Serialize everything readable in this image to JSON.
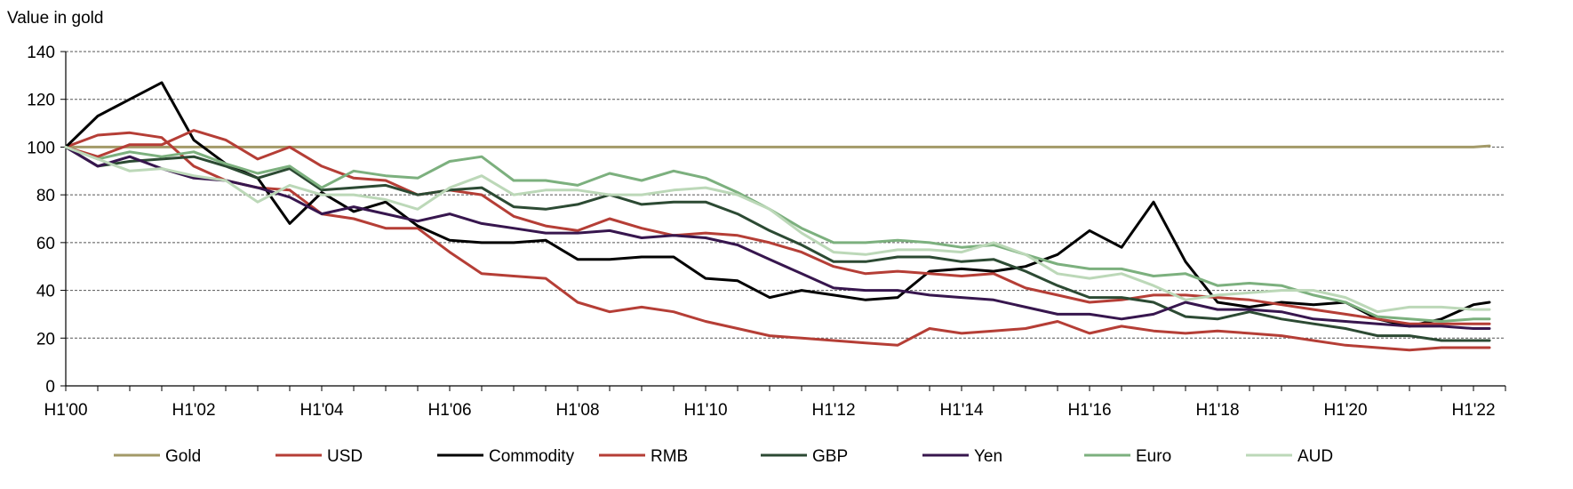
{
  "chart_data": {
    "type": "line",
    "title": "",
    "ylabel": "Value in gold",
    "xlabel": "",
    "ylim": [
      0,
      140
    ],
    "yticks": [
      0,
      20,
      40,
      60,
      80,
      100,
      120,
      140
    ],
    "xlim": [
      2000,
      2022.5
    ],
    "xtick_labels": [
      "H1'00",
      "H1'02",
      "H1'04",
      "H1'06",
      "H1'08",
      "H1'10",
      "H1'12",
      "H1'14",
      "H1'16",
      "H1'18",
      "H1'20",
      "H1'22"
    ],
    "xtick_values": [
      2000,
      2002,
      2004,
      2006,
      2008,
      2010,
      2012,
      2014,
      2016,
      2018,
      2020,
      2022
    ],
    "grid": "horizontal dashed",
    "legend_position": "bottom",
    "x": [
      2000,
      2000.5,
      2001,
      2001.5,
      2002,
      2002.5,
      2003,
      2003.5,
      2004,
      2004.5,
      2005,
      2005.5,
      2006,
      2006.5,
      2007,
      2007.5,
      2008,
      2008.5,
      2009,
      2009.5,
      2010,
      2010.5,
      2011,
      2011.5,
      2012,
      2012.5,
      2013,
      2013.5,
      2014,
      2014.5,
      2015,
      2015.5,
      2016,
      2016.5,
      2017,
      2017.5,
      2018,
      2018.5,
      2019,
      2019.5,
      2020,
      2020.5,
      2021,
      2021.5,
      2022,
      2022.25
    ],
    "series": [
      {
        "name": "Gold",
        "color": "#a39a68",
        "values": [
          100,
          100,
          100,
          100,
          100,
          100,
          100,
          100,
          100,
          100,
          100,
          100,
          100,
          100,
          100,
          100,
          100,
          100,
          100,
          100,
          100,
          100,
          100,
          100,
          100,
          100,
          100,
          100,
          100,
          100,
          100,
          100,
          100,
          100,
          100,
          100,
          100,
          100,
          100,
          100,
          100,
          100,
          100,
          100,
          100,
          100.5
        ]
      },
      {
        "name": "USD",
        "color": "#b53e36",
        "values": [
          100,
          105,
          106,
          104,
          92,
          86,
          83,
          82,
          72,
          70,
          66,
          66,
          56,
          47,
          46,
          45,
          35,
          31,
          33,
          31,
          27,
          24,
          21,
          20,
          19,
          18,
          17,
          24,
          22,
          23,
          24,
          27,
          22,
          25,
          23,
          22,
          23,
          22,
          21,
          19,
          17,
          16,
          15,
          16,
          16,
          16
        ]
      },
      {
        "name": "Commodity",
        "color": "#000000",
        "values": [
          100,
          113,
          120,
          127,
          103,
          93,
          87,
          68,
          81,
          73,
          77,
          67,
          61,
          60,
          60,
          61,
          53,
          53,
          54,
          54,
          45,
          44,
          37,
          40,
          38,
          36,
          37,
          48,
          49,
          48,
          50,
          55,
          65,
          58,
          77,
          52,
          35,
          33,
          35,
          34,
          35,
          28,
          25,
          28,
          34,
          35
        ]
      },
      {
        "name": "RMB",
        "color": "#b53e36",
        "values": [
          100,
          96,
          101,
          101,
          107,
          103,
          95,
          100,
          92,
          87,
          86,
          80,
          82,
          80,
          71,
          67,
          65,
          70,
          66,
          63,
          64,
          63,
          60,
          56,
          50,
          47,
          48,
          47,
          46,
          47,
          41,
          38,
          35,
          36,
          38,
          38,
          37,
          36,
          34,
          32,
          30,
          28,
          26,
          26,
          26,
          26
        ]
      },
      {
        "name": "GBP",
        "color": "#2c4a33",
        "values": [
          100,
          92,
          94,
          95,
          96,
          92,
          87,
          91,
          82,
          83,
          84,
          80,
          82,
          83,
          75,
          74,
          76,
          80,
          76,
          77,
          77,
          72,
          65,
          59,
          52,
          52,
          54,
          54,
          52,
          53,
          48,
          42,
          37,
          37,
          35,
          29,
          28,
          31,
          28,
          26,
          24,
          21,
          21,
          19,
          19,
          19
        ]
      },
      {
        "name": "Yen",
        "color": "#37164e",
        "values": [
          100,
          92,
          96,
          91,
          87,
          86,
          83,
          79,
          72,
          75,
          72,
          69,
          72,
          68,
          66,
          64,
          64,
          65,
          62,
          63,
          62,
          59,
          53,
          47,
          41,
          40,
          40,
          38,
          37,
          36,
          33,
          30,
          30,
          28,
          30,
          35,
          32,
          32,
          31,
          28,
          27,
          26,
          25,
          25,
          24,
          24
        ]
      },
      {
        "name": "Euro",
        "color": "#7cb07e",
        "values": [
          100,
          95,
          98,
          96,
          98,
          93,
          89,
          92,
          83,
          90,
          88,
          87,
          94,
          96,
          86,
          86,
          84,
          89,
          86,
          90,
          87,
          81,
          74,
          66,
          60,
          60,
          61,
          60,
          58,
          59,
          55,
          51,
          49,
          49,
          46,
          47,
          42,
          43,
          42,
          38,
          35,
          29,
          28,
          27,
          28,
          28
        ]
      },
      {
        "name": "AUD",
        "color": "#bcd8b8",
        "values": [
          100,
          95,
          90,
          91,
          88,
          86,
          77,
          84,
          80,
          80,
          78,
          74,
          83,
          88,
          80,
          82,
          82,
          80,
          80,
          82,
          83,
          80,
          74,
          64,
          56,
          55,
          57,
          57,
          56,
          60,
          55,
          47,
          45,
          47,
          42,
          36,
          38,
          39,
          40,
          40,
          37,
          31,
          33,
          33,
          32,
          32
        ]
      }
    ]
  }
}
